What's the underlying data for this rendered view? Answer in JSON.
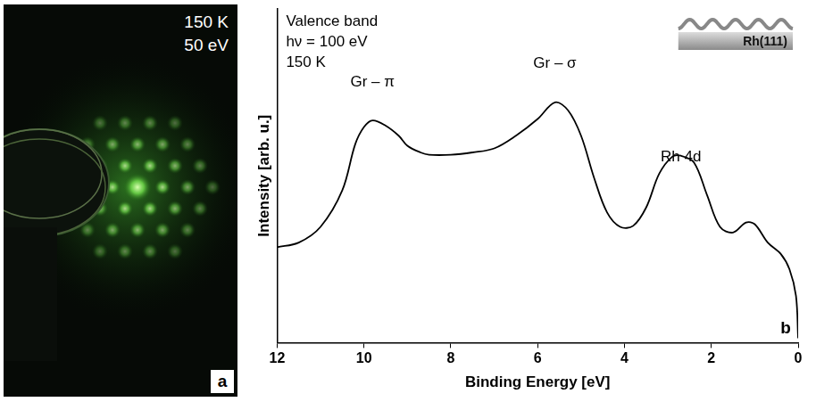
{
  "panel_a": {
    "texts": [
      "150 K",
      "50 eV"
    ],
    "letter": "a"
  },
  "chart_data": {
    "type": "line",
    "x_label": "Binding Energy [eV]",
    "y_label": "Intensity [arb. u.]",
    "text_box": [
      "Valence band",
      "hν = 100 eV",
      "150 K"
    ],
    "annotations": [
      "Gr – π",
      "Gr – σ",
      "Rh 4d"
    ],
    "inset_label": "Rh(111)",
    "panel_letter": "b",
    "x": [
      12,
      11.5,
      11,
      10.5,
      10.2,
      10,
      9.8,
      9.5,
      9.2,
      9,
      8.7,
      8.5,
      8,
      7.5,
      7,
      6.5,
      6,
      5.6,
      5.3,
      5,
      4.7,
      4.4,
      4.1,
      3.8,
      3.5,
      3.2,
      2.9,
      2.7,
      2.4,
      2.1,
      1.8,
      1.5,
      1.2,
      1,
      0.7,
      0.4,
      0.2,
      0.05,
      0
    ],
    "values": [
      0.286,
      0.3,
      0.347,
      0.456,
      0.595,
      0.646,
      0.666,
      0.65,
      0.62,
      0.59,
      0.57,
      0.563,
      0.563,
      0.57,
      0.582,
      0.62,
      0.67,
      0.72,
      0.696,
      0.62,
      0.494,
      0.39,
      0.347,
      0.35,
      0.405,
      0.506,
      0.557,
      0.56,
      0.54,
      0.443,
      0.347,
      0.33,
      0.36,
      0.355,
      0.3,
      0.266,
      0.22,
      0.14,
      0.013
    ],
    "color": "#000000",
    "xlim": [
      12,
      0
    ],
    "xticks": [
      12,
      10,
      8,
      6,
      4,
      2,
      0
    ],
    "ylim": [
      0,
      1
    ],
    "yticks": [],
    "grid": false,
    "tick_labels": "x"
  }
}
